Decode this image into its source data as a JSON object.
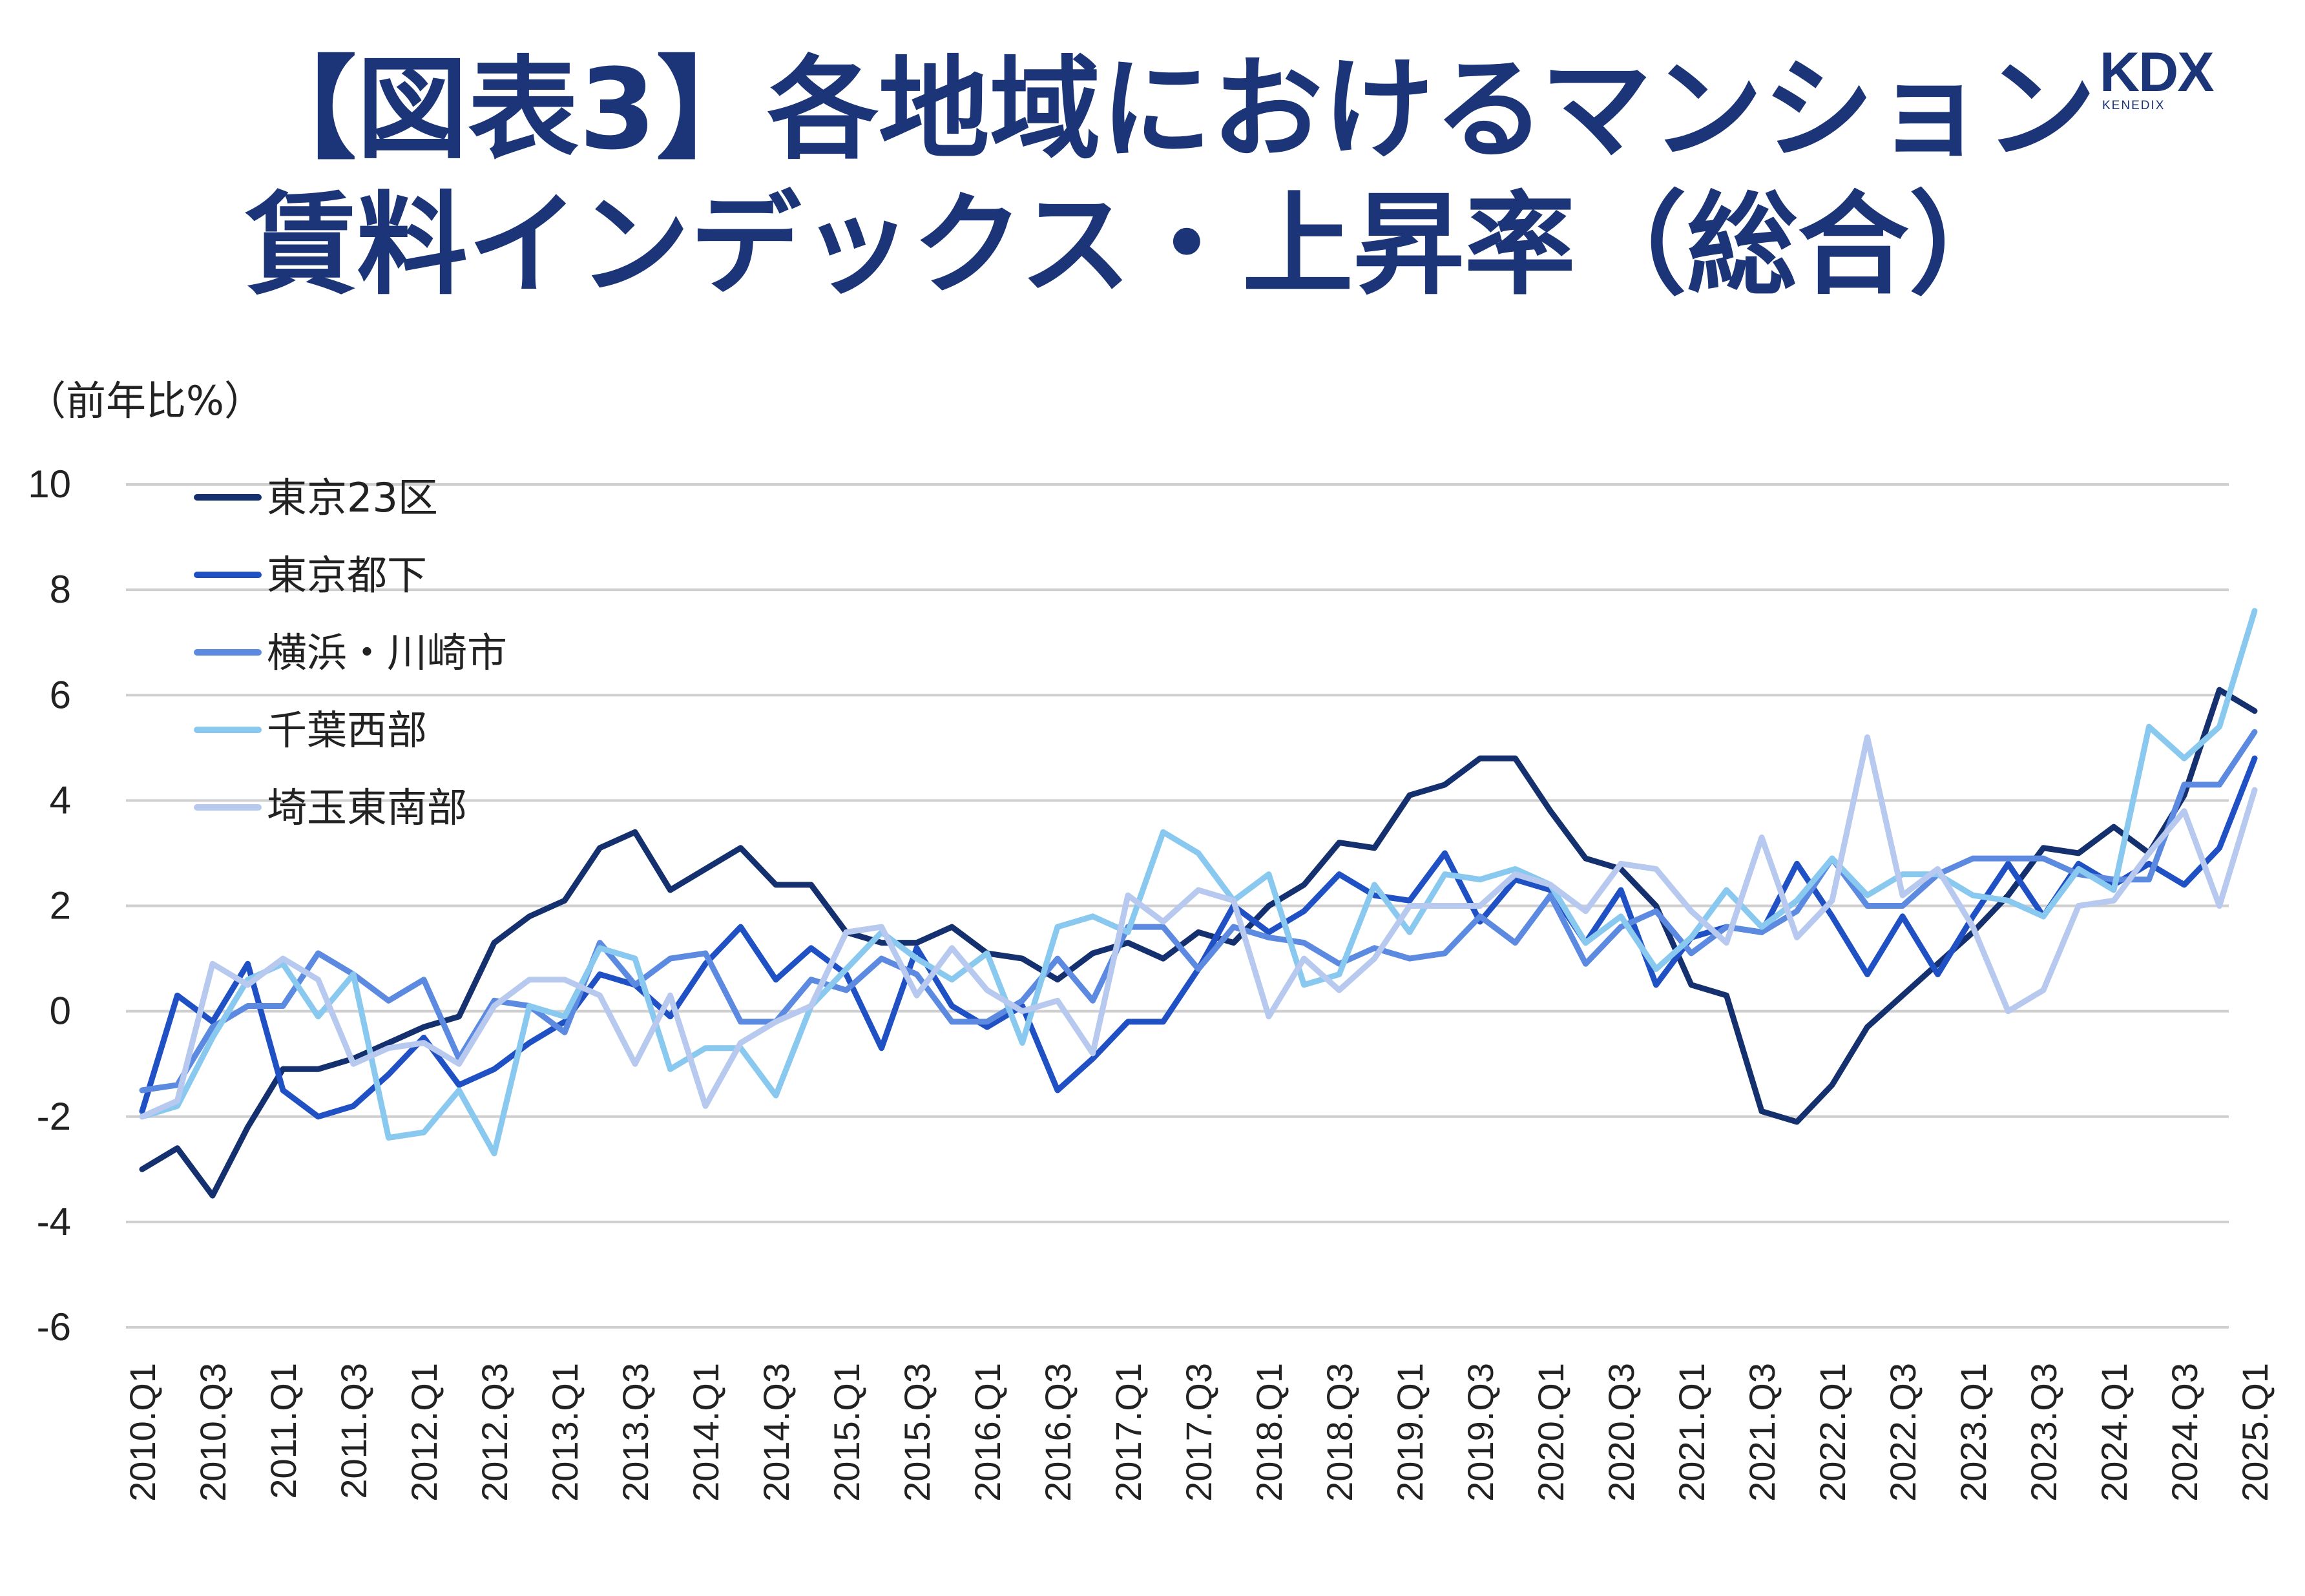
{
  "title": {
    "line1": "【図表3】各地域におけるマンション",
    "line2": "賃料インデックス・上昇率（総合）"
  },
  "logo": {
    "main": "KDX",
    "sub": "KENEDIX"
  },
  "colors": {
    "title": "#1b3578",
    "grid": "#cfcfcf"
  },
  "chart_data": {
    "type": "line",
    "ylabel": "（前年比%）",
    "ylim": [
      -6,
      10
    ],
    "yticks": [
      10,
      8,
      6,
      4,
      2,
      0,
      -2,
      -4,
      -6
    ],
    "grid": "horizontal",
    "legend_position": "top-left",
    "x": [
      "2010.Q1",
      "2010.Q2",
      "2010.Q3",
      "2010.Q4",
      "2011.Q1",
      "2011.Q2",
      "2011.Q3",
      "2011.Q4",
      "2012.Q1",
      "2012.Q2",
      "2012.Q3",
      "2012.Q4",
      "2013.Q1",
      "2013.Q2",
      "2013.Q3",
      "2013.Q4",
      "2014.Q1",
      "2014.Q2",
      "2014.Q3",
      "2014.Q4",
      "2015.Q1",
      "2015.Q2",
      "2015.Q3",
      "2015.Q4",
      "2016.Q1",
      "2016.Q2",
      "2016.Q3",
      "2016.Q4",
      "2017.Q1",
      "2017.Q2",
      "2017.Q3",
      "2017.Q4",
      "2018.Q1",
      "2018.Q2",
      "2018.Q3",
      "2018.Q4",
      "2019.Q1",
      "2019.Q2",
      "2019.Q3",
      "2019.Q4",
      "2020.Q1",
      "2020.Q2",
      "2020.Q3",
      "2020.Q4",
      "2021.Q1",
      "2021.Q2",
      "2021.Q3",
      "2021.Q4",
      "2022.Q1",
      "2022.Q2",
      "2022.Q3",
      "2022.Q4",
      "2023.Q1",
      "2023.Q2",
      "2023.Q3",
      "2023.Q4",
      "2024.Q1",
      "2024.Q2",
      "2024.Q3",
      "2024.Q4",
      "2025.Q1"
    ],
    "xtick_labels": [
      "2010.Q1",
      "2010.Q3",
      "2011.Q1",
      "2011.Q3",
      "2012.Q1",
      "2012.Q3",
      "2013.Q1",
      "2013.Q3",
      "2014.Q1",
      "2014.Q3",
      "2015.Q1",
      "2015.Q3",
      "2016.Q1",
      "2016.Q3",
      "2017.Q1",
      "2017.Q3",
      "2018.Q1",
      "2018.Q3",
      "2019.Q1",
      "2019.Q3",
      "2020.Q1",
      "2020.Q3",
      "2021.Q1",
      "2021.Q3",
      "2022.Q1",
      "2022.Q3",
      "2023.Q1",
      "2023.Q3",
      "2024.Q1",
      "2024.Q3",
      "2025.Q1"
    ],
    "series": [
      {
        "name": "東京23区",
        "color": "#14306e",
        "values": [
          -3.0,
          -2.6,
          -3.5,
          -2.2,
          -1.1,
          -1.1,
          -0.9,
          -0.6,
          -0.3,
          -0.1,
          1.3,
          1.8,
          2.1,
          3.1,
          3.4,
          2.3,
          2.7,
          3.1,
          2.4,
          2.4,
          1.5,
          1.3,
          1.3,
          1.6,
          1.1,
          1.0,
          0.6,
          1.1,
          1.3,
          1.0,
          1.5,
          1.3,
          2.0,
          2.4,
          3.2,
          3.1,
          4.1,
          4.3,
          4.8,
          4.8,
          3.8,
          2.9,
          2.7,
          2.0,
          0.5,
          0.3,
          -1.9,
          -2.1,
          -1.4,
          -0.3,
          0.3,
          0.9,
          1.5,
          2.2,
          3.1,
          3.0,
          3.5,
          3.0,
          4.1,
          6.1,
          5.7
        ]
      },
      {
        "name": "東京都下",
        "color": "#1f50c4",
        "values": [
          -1.9,
          0.3,
          -0.2,
          0.9,
          -1.5,
          -2.0,
          -1.8,
          -1.2,
          -0.5,
          -1.4,
          -1.1,
          -0.6,
          -0.2,
          0.7,
          0.5,
          -0.1,
          0.9,
          1.6,
          0.6,
          1.2,
          0.7,
          -0.7,
          1.2,
          0.1,
          -0.3,
          0.1,
          -1.5,
          -0.9,
          -0.2,
          -0.2,
          0.8,
          2.0,
          1.5,
          1.9,
          2.6,
          2.2,
          2.1,
          3.0,
          1.7,
          2.5,
          2.3,
          1.3,
          2.3,
          0.5,
          1.4,
          1.6,
          1.5,
          2.8,
          1.8,
          0.7,
          1.8,
          0.7,
          1.8,
          2.8,
          1.8,
          2.8,
          2.4,
          2.8,
          2.4,
          3.1,
          4.8
        ]
      },
      {
        "name": "横浜・川崎市",
        "color": "#5b8ae0",
        "values": [
          -1.5,
          -1.4,
          -0.3,
          0.1,
          0.1,
          1.1,
          0.7,
          0.2,
          0.6,
          -0.9,
          0.2,
          0.1,
          -0.4,
          1.3,
          0.5,
          1.0,
          1.1,
          -0.2,
          -0.2,
          0.6,
          0.4,
          1.0,
          0.7,
          -0.2,
          -0.2,
          0.2,
          1.0,
          0.2,
          1.6,
          1.6,
          0.8,
          1.6,
          1.4,
          1.3,
          0.9,
          1.2,
          1.0,
          1.1,
          1.8,
          1.3,
          2.2,
          0.9,
          1.6,
          1.9,
          1.1,
          1.6,
          1.5,
          1.9,
          2.9,
          2.0,
          2.0,
          2.6,
          2.9,
          2.9,
          2.9,
          2.6,
          2.5,
          2.5,
          4.3,
          4.3,
          5.3
        ]
      },
      {
        "name": "千葉西部",
        "color": "#89c9ef",
        "values": [
          -2.0,
          -1.8,
          -0.5,
          0.6,
          0.9,
          -0.1,
          0.7,
          -2.4,
          -2.3,
          -1.5,
          -2.7,
          0.1,
          -0.1,
          1.2,
          1.0,
          -1.1,
          -0.7,
          -0.7,
          -1.6,
          0.1,
          0.8,
          1.5,
          1.0,
          0.6,
          1.1,
          -0.6,
          1.6,
          1.8,
          1.5,
          3.4,
          3.0,
          2.1,
          2.6,
          0.5,
          0.7,
          2.4,
          1.5,
          2.6,
          2.5,
          2.7,
          2.4,
          1.3,
          1.8,
          0.8,
          1.4,
          2.3,
          1.6,
          2.1,
          2.9,
          2.2,
          2.6,
          2.6,
          2.2,
          2.1,
          1.8,
          2.7,
          2.3,
          5.4,
          4.8,
          5.4,
          7.6
        ]
      },
      {
        "name": "埼玉東南部",
        "color": "#b8c9f0",
        "values": [
          -2.0,
          -1.7,
          0.9,
          0.5,
          1.0,
          0.6,
          -1.0,
          -0.7,
          -0.6,
          -1.0,
          0.1,
          0.6,
          0.6,
          0.3,
          -1.0,
          0.3,
          -1.8,
          -0.6,
          -0.2,
          0.1,
          1.5,
          1.6,
          0.3,
          1.2,
          0.4,
          0.0,
          0.2,
          -0.8,
          2.2,
          1.7,
          2.3,
          2.1,
          -0.1,
          1.0,
          0.4,
          1.0,
          2.0,
          2.0,
          2.0,
          2.6,
          2.4,
          1.9,
          2.8,
          2.7,
          1.9,
          1.3,
          3.3,
          1.4,
          2.1,
          5.2,
          2.2,
          2.7,
          1.6,
          0.0,
          0.4,
          2.0,
          2.1,
          3.0,
          3.8,
          2.0,
          4.2
        ]
      }
    ]
  }
}
